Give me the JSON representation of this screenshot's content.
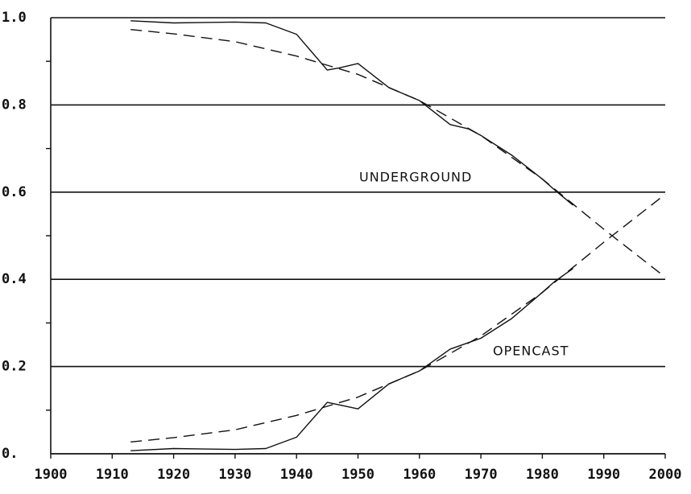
{
  "chart_data": {
    "type": "line",
    "annotations": [
      "UNDERGROUND",
      "OPENCAST"
    ],
    "xlim": [
      1900,
      2000
    ],
    "xticks": [
      1900,
      1910,
      1920,
      1930,
      1940,
      1950,
      1960,
      1970,
      1980,
      1990,
      2000
    ],
    "ylim": [
      0,
      1
    ],
    "yticks": [
      {
        "value": 0,
        "label": "0."
      },
      0.2,
      0.4,
      0.6,
      0.8,
      {
        "value": 1,
        "label": "1.0"
      }
    ],
    "yminorticks": [
      0.1,
      0.3,
      0.5,
      0.7,
      0.9
    ],
    "grid": true,
    "series": [
      {
        "color": "#111111",
        "dash": false,
        "x": [
          1913,
          1920,
          1925,
          1930,
          1935,
          1940,
          1945,
          1947,
          1950,
          1955,
          1960,
          1965,
          1968,
          1970,
          1975,
          1980,
          1982,
          1985
        ],
        "values": [
          0.993,
          0.988,
          0.989,
          0.99,
          0.988,
          0.962,
          0.88,
          0.885,
          0.895,
          0.84,
          0.81,
          0.755,
          0.745,
          0.73,
          0.685,
          0.63,
          0.605,
          0.57
        ]
      },
      {
        "color": "#111111",
        "dash": true,
        "x": [
          1913,
          1920,
          1930,
          1940,
          1950,
          1960,
          1970,
          1980,
          1990,
          2000
        ],
        "values": [
          0.973,
          0.963,
          0.945,
          0.912,
          0.87,
          0.81,
          0.73,
          0.63,
          0.515,
          0.405
        ]
      },
      {
        "color": "#111111",
        "dash": false,
        "x": [
          1913,
          1920,
          1925,
          1930,
          1935,
          1940,
          1945,
          1947,
          1950,
          1955,
          1960,
          1965,
          1968,
          1970,
          1975,
          1980,
          1982,
          1985
        ],
        "values": [
          0.007,
          0.012,
          0.011,
          0.01,
          0.012,
          0.038,
          0.118,
          0.112,
          0.103,
          0.16,
          0.19,
          0.24,
          0.255,
          0.265,
          0.31,
          0.37,
          0.395,
          0.425
        ]
      },
      {
        "color": "#111111",
        "dash": true,
        "x": [
          1913,
          1920,
          1930,
          1940,
          1950,
          1960,
          1970,
          1980,
          1990,
          2000
        ],
        "values": [
          0.027,
          0.037,
          0.055,
          0.088,
          0.13,
          0.19,
          0.27,
          0.37,
          0.485,
          0.595
        ]
      }
    ]
  }
}
